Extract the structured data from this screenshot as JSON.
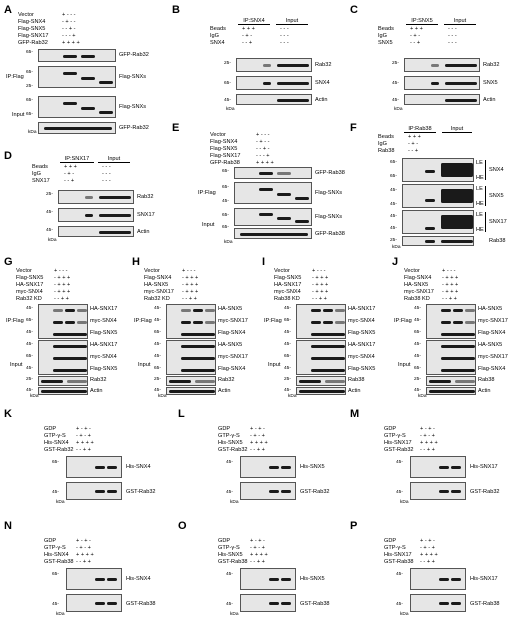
{
  "panels": {
    "A": {
      "label": "A",
      "rows": [
        "Vector",
        "Flag-SNX4",
        "Flag-SNX5",
        "Flag-SNX17",
        "GFP-Rab32"
      ],
      "signs": [
        "+ - - -",
        "- + - -",
        "- - + -",
        "- - - +",
        "+ + + +"
      ],
      "side": [
        "IP:Flag",
        "Input"
      ],
      "right": [
        "GFP-Rab32",
        "Flag-SNXs",
        "Flag-SNXs",
        "GFP-Rab32"
      ],
      "mw": [
        "65-",
        "65-",
        "25-",
        "65-",
        "65-",
        "25-"
      ],
      "kda": "kDa"
    },
    "B": {
      "label": "B",
      "header_ip": "IP:SNX4",
      "header_input": "Input",
      "rows": [
        "Beads",
        "IgG",
        "SNX4"
      ],
      "signs": [
        "+ + +",
        "- + -",
        "- - +",
        "- - -",
        "- - -",
        "- - -"
      ],
      "right": [
        "Rab32",
        "SNX4",
        "Actin"
      ],
      "mw": [
        "25-",
        "65-",
        "45-"
      ],
      "kda": "kDa"
    },
    "C": {
      "label": "C",
      "header_ip": "IP:SNX5",
      "header_input": "Input",
      "rows": [
        "Beads",
        "IgG",
        "SNX5"
      ],
      "signs": [
        "+ + +",
        "- + -",
        "- - +",
        "- - -",
        "- - -",
        "- - -"
      ],
      "right": [
        "Rab32",
        "SNX5",
        "Actin"
      ],
      "mw": [
        "25-",
        "45-",
        "45-"
      ],
      "kda": "kDa"
    },
    "D": {
      "label": "D",
      "header_ip": "IP:SNX17",
      "header_input": "Input",
      "rows": [
        "Beads",
        "IgG",
        "SNX17"
      ],
      "signs": [
        "+ + +",
        "- + -",
        "- - +",
        "- - -",
        "- - -",
        "- - -"
      ],
      "right": [
        "Rab32",
        "SNX17",
        "Actin"
      ],
      "mw": [
        "25-",
        "45-",
        "45-"
      ],
      "kda": "kDa"
    },
    "E": {
      "label": "E",
      "rows": [
        "Vector",
        "Flag-SNX4",
        "Flag-SNX5",
        "Flag-SNX17",
        "GFP-Rab38"
      ],
      "signs": [
        "+ - - -",
        "- + - -",
        "- - + -",
        "- - - +",
        "+ + + +"
      ],
      "side": [
        "IP:Flag",
        "Input"
      ],
      "right": [
        "GFP-Rab38",
        "Flag-SNXs",
        "Flag-SNXs",
        "GFP-Rab38"
      ],
      "mw": [
        "65-",
        "65-",
        "45-",
        "65-",
        "65-",
        "25-"
      ],
      "kda": "kDa"
    },
    "F": {
      "label": "F",
      "header_ip": "IP:Rab38",
      "header_input": "Input",
      "rows": [
        "Beads",
        "IgG",
        "Rab38"
      ],
      "signs": [
        "+ + +",
        "- + -",
        "- - +"
      ],
      "right": [
        "SNX4",
        "SNX5",
        "SNX17",
        "Rab38"
      ],
      "lehe": [
        "LE",
        "HE",
        "LE",
        "HE",
        "LE",
        "HE"
      ],
      "mw": [
        "65-",
        "65-",
        "45-",
        "45-",
        "45-",
        "45-",
        "25-"
      ],
      "kda": "kDa"
    },
    "G": {
      "label": "G",
      "rows": [
        "Vector",
        "Flag-SNX5",
        "HA-SNX17",
        "myc-SNX4",
        "Rab32 KD"
      ],
      "signs": [
        "+ - - -",
        "- + + +",
        "- + + +",
        "- + + +",
        "- - + +"
      ],
      "side": [
        "IP:Flag",
        "Input"
      ],
      "right": [
        "HA-SNX17",
        "myc-SNX4",
        "Flag-SNX5",
        "HA-SNX17",
        "myc-SNX4",
        "Flag-SNX5",
        "Rab32",
        "Actin"
      ],
      "mw": [
        "45-",
        "65-",
        "45-",
        "45-",
        "65-",
        "45-",
        "25-",
        "45-"
      ],
      "kda": "kDa"
    },
    "H": {
      "label": "H",
      "rows": [
        "Vector",
        "Flag-SNX4",
        "HA-SNX5",
        "myc-SNX17",
        "Rab32 KD"
      ],
      "signs": [
        "+ - - -",
        "- + + +",
        "- + + +",
        "- + + +",
        "- - + +"
      ],
      "side": [
        "IP:Flag",
        "Input"
      ],
      "right": [
        "HA-SNX5",
        "myc-SNX17",
        "Flag-SNX4",
        "HA-SNX5",
        "myc-SNX17",
        "Flag-SNX4",
        "Rab32",
        "Actin"
      ],
      "mw": [
        "45-",
        "45-",
        "65-",
        "45-",
        "45-",
        "65-",
        "25-",
        "45-"
      ],
      "kda": "kDa"
    },
    "I": {
      "label": "I",
      "rows": [
        "Vector",
        "Flag-SNX5",
        "HA-SNX17",
        "myc-SNX4",
        "Rab38 KD"
      ],
      "signs": [
        "+ - - -",
        "- + + +",
        "- + + +",
        "- + + +",
        "- - + +"
      ],
      "side": [
        "IP:Flag",
        "Input"
      ],
      "right": [
        "HA-SNX17",
        "myc-SNX4",
        "Flag-SNX5",
        "HA-SNX17",
        "myc-SNX4",
        "Flag-SNX5",
        "Rab38",
        "Actin"
      ],
      "mw": [
        "45-",
        "65-",
        "45-",
        "45-",
        "65-",
        "45-",
        "25-",
        "45-"
      ],
      "kda": "kDa"
    },
    "J": {
      "label": "J",
      "rows": [
        "Vector",
        "Flag-SNX4",
        "HA-SNX5",
        "myc-SNX17",
        "Rab38 KD"
      ],
      "signs": [
        "+ - - -",
        "- + + +",
        "- + + +",
        "- + + +",
        "- - + +"
      ],
      "side": [
        "IP:Flag",
        "Input"
      ],
      "right": [
        "HA-SNX5",
        "myc-SNX17",
        "Flag-SNX4",
        "HA-SNX5",
        "myc-SNX17",
        "Flag-SNX4",
        "Rab38",
        "Actin"
      ],
      "mw": [
        "45-",
        "45-",
        "65-",
        "45-",
        "45-",
        "65-",
        "25-",
        "45-"
      ],
      "kda": "kDa"
    },
    "K": {
      "label": "K",
      "rows": [
        "GDP",
        "GTP-γ-S",
        "His-SNX4",
        "GST-Rab32"
      ],
      "signs": [
        "+ - + -",
        "- + - +",
        "+ + + +",
        "- - + +"
      ],
      "right": [
        "His-SNX4",
        "GST-Rab32"
      ],
      "mw": [
        "65-",
        "45-"
      ],
      "kda": "kDa"
    },
    "L": {
      "label": "L",
      "rows": [
        "GDP",
        "GTP-γ-S",
        "His-SNX5",
        "GST-Rab32"
      ],
      "signs": [
        "+ - + -",
        "- + - +",
        "+ + + +",
        "- - + +"
      ],
      "right": [
        "His-SNX5",
        "GST-Rab32"
      ],
      "mw": [
        "45-",
        "45-"
      ],
      "kda": "kDa"
    },
    "M": {
      "label": "M",
      "rows": [
        "GDP",
        "GTP-γ-S",
        "His-SNX17",
        "GST-Rab32"
      ],
      "signs": [
        "+ - + -",
        "- + - +",
        "+ + + +",
        "- - + +"
      ],
      "right": [
        "His-SNX17",
        "GST-Rab32"
      ],
      "mw": [
        "45-",
        "45-"
      ],
      "kda": "kDa"
    },
    "N": {
      "label": "N",
      "rows": [
        "GDP",
        "GTP-γ-S",
        "His-SNX4",
        "GST-Rab38"
      ],
      "signs": [
        "+ - + -",
        "- + - +",
        "+ + + +",
        "- - + +"
      ],
      "right": [
        "His-SNX4",
        "GST-Rab38"
      ],
      "mw": [
        "65-",
        "45-"
      ],
      "kda": "kDa"
    },
    "O": {
      "label": "O",
      "rows": [
        "GDP",
        "GTP-γ-S",
        "His-SNX5",
        "GST-Rab38"
      ],
      "signs": [
        "+ - + -",
        "- + - +",
        "+ + + +",
        "- - + +"
      ],
      "right": [
        "His-SNX5",
        "GST-Rab38"
      ],
      "mw": [
        "45-",
        "45-"
      ],
      "kda": "kDa"
    },
    "P": {
      "label": "P",
      "rows": [
        "GDP",
        "GTP-γ-S",
        "His-SNX17",
        "GST-Rab38"
      ],
      "signs": [
        "+ - + -",
        "- + - +",
        "+ + + +",
        "- - + +"
      ],
      "right": [
        "His-SNX17",
        "GST-Rab38"
      ],
      "mw": [
        "45-",
        "45-"
      ],
      "kda": "kDa"
    }
  }
}
